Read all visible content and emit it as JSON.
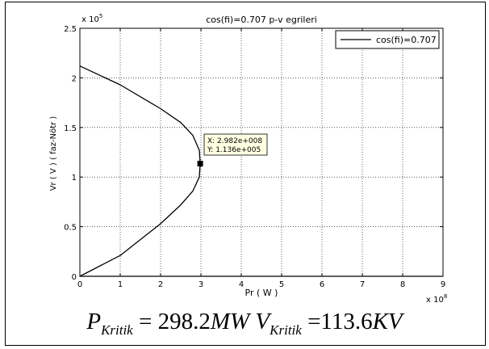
{
  "chart_data": {
    "type": "line",
    "title": "cos(fi)=0.707 p-v egrileri",
    "xlabel": "Pr  ( W )",
    "ylabel": "Vr  ( V )  ( faz-Nötr )",
    "x_multiplier": "x 10",
    "x_multiplier_exp": "8",
    "y_multiplier": "x 10",
    "y_multiplier_exp": "5",
    "xlim": [
      0,
      9
    ],
    "ylim": [
      0,
      2.5
    ],
    "xticks": [
      "0",
      "1",
      "2",
      "3",
      "4",
      "5",
      "6",
      "7",
      "8",
      "9"
    ],
    "yticks": [
      "0",
      "0.5",
      "1",
      "1.5",
      "2",
      "2.5"
    ],
    "grid": true,
    "legend_position": "top-right",
    "series": [
      {
        "name": "cos(fi)=0.707",
        "color": "#000000",
        "x": [
          0,
          1,
          2,
          2.5,
          2.8,
          2.96,
          2.982,
          2.96,
          2.8,
          2.5,
          2,
          1,
          0,
          1,
          2,
          3,
          4,
          5,
          6,
          7,
          8,
          9
        ],
        "y": [
          2.12,
          1.93,
          1.69,
          1.55,
          1.42,
          1.27,
          1.136,
          1.0,
          0.86,
          0.72,
          0.53,
          0.21,
          0.0,
          0.0,
          0.0,
          0.0,
          0.0,
          0.0,
          0.0,
          0.0,
          0.0,
          0.0
        ]
      }
    ],
    "datatip": {
      "x": 2.982,
      "y": 1.136,
      "x_text": "X: 2.982e+008",
      "y_text": "Y: 1.136e+005"
    }
  },
  "footer": {
    "p_symbol": "P",
    "p_sub": "Kritik",
    "p_eq": "= 298.2",
    "p_unit": "MW",
    "v_symbol": "V",
    "v_sub": "Kritik",
    "v_eq": "=113.6",
    "v_unit": "KV"
  }
}
